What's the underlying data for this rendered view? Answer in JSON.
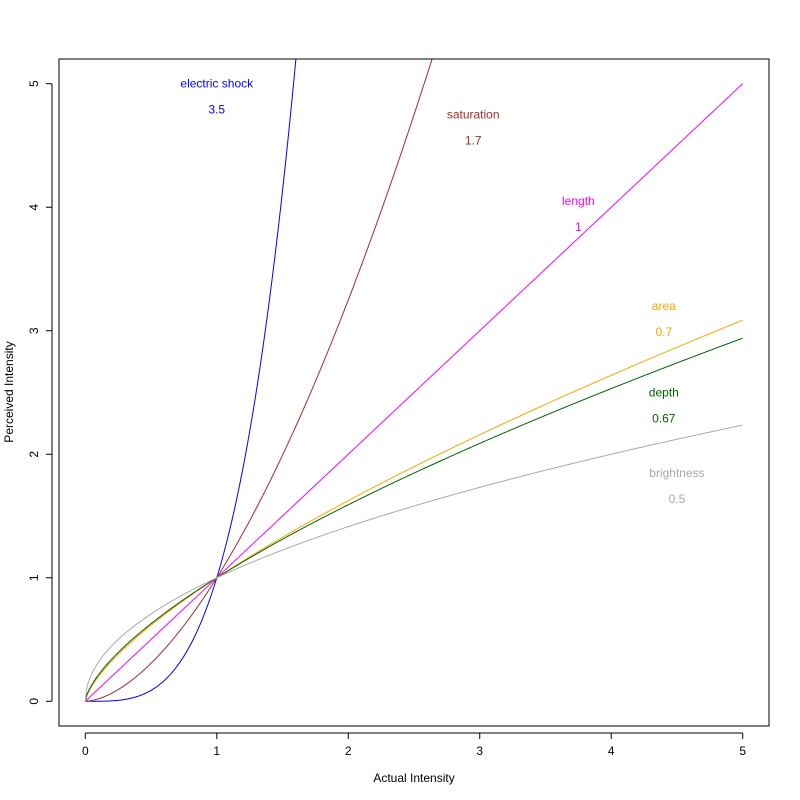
{
  "chart_data": {
    "type": "line",
    "title": "",
    "xlabel": "Actual Intensity",
    "ylabel": "Perceived Intensity",
    "xlim": [
      -0.2,
      5.2
    ],
    "ylim": [
      -0.2,
      5.2
    ],
    "xticks": [
      0,
      1,
      2,
      3,
      4,
      5
    ],
    "yticks": [
      0,
      1,
      2,
      3,
      4,
      5
    ],
    "grid": false,
    "function": "y = x^exponent",
    "x_range": [
      0,
      5
    ],
    "series": [
      {
        "name": "electric shock",
        "exponent": 3.5,
        "exponent_label": "3.5",
        "color": "#0000ff",
        "label_pos": [
          1.0,
          5.0
        ]
      },
      {
        "name": "saturation",
        "exponent": 1.7,
        "exponent_label": "1.7",
        "color": "#a52a2a",
        "label_pos": [
          2.95,
          4.75
        ]
      },
      {
        "name": "length",
        "exponent": 1.0,
        "exponent_label": "1",
        "color": "#ff00ff",
        "label_pos": [
          3.75,
          4.05
        ]
      },
      {
        "name": "area",
        "exponent": 0.7,
        "exponent_label": "0.7",
        "color": "#ffa500",
        "label_pos": [
          4.4,
          3.2
        ]
      },
      {
        "name": "depth",
        "exponent": 0.67,
        "exponent_label": "0.67",
        "color": "#006400",
        "label_pos": [
          4.4,
          2.5
        ]
      },
      {
        "name": "brightness",
        "exponent": 0.5,
        "exponent_label": "0.5",
        "color": "#a9a9a9",
        "label_pos": [
          4.5,
          1.85
        ]
      }
    ]
  }
}
